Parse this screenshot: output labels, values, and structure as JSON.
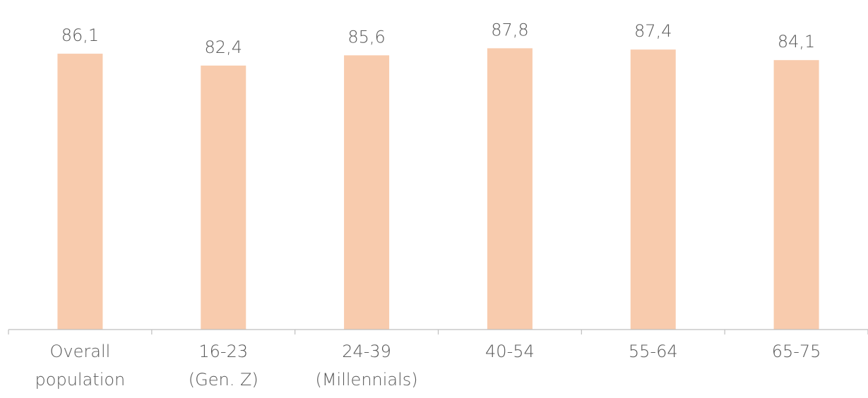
{
  "chart_data": {
    "type": "bar",
    "categories": [
      [
        "Overall",
        "population"
      ],
      [
        "16-23",
        "(Gen. Z)"
      ],
      [
        "24-39",
        "(Millennials)"
      ],
      [
        "40-54"
      ],
      [
        "55-64"
      ],
      [
        "65-75"
      ]
    ],
    "values": [
      86.1,
      82.4,
      85.6,
      87.8,
      87.4,
      84.1
    ],
    "data_labels": [
      "86,1",
      "82,4",
      "85,6",
      "87,8",
      "87,4",
      "84,1"
    ],
    "title": "",
    "xlabel": "",
    "ylabel": "",
    "ylim": [
      0,
      100
    ],
    "grid": false,
    "legend": "none",
    "colors": {
      "bar": "#F8CBAD",
      "axis": "#BFBFBF",
      "text": "#595959"
    }
  }
}
